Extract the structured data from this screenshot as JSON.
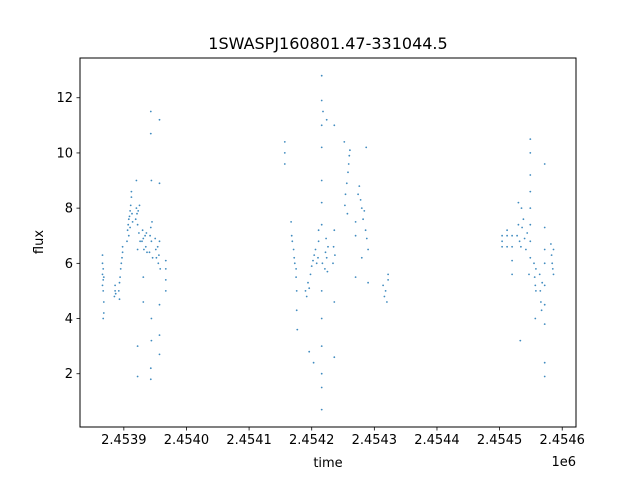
{
  "chart_data": {
    "type": "scatter",
    "title": "1SWASPJ160801.47-331044.5",
    "xlabel": "time",
    "ylabel": "flux",
    "x_offset_label": "1e6",
    "xlim": [
      2453830,
      2454622
    ],
    "ylim": [
      0.07,
      13.44
    ],
    "grid": false,
    "legend": "none",
    "marker_color": "#1f77b4",
    "x_ticks": [
      {
        "value": 2453900,
        "label": "2.4539"
      },
      {
        "value": 2454000,
        "label": "2.4540"
      },
      {
        "value": 2454100,
        "label": "2.4541"
      },
      {
        "value": 2454200,
        "label": "2.4542"
      },
      {
        "value": 2454300,
        "label": "2.4543"
      },
      {
        "value": 2454400,
        "label": "2.4544"
      },
      {
        "value": 2454500,
        "label": "2.4545"
      },
      {
        "value": 2454600,
        "label": "2.4546"
      }
    ],
    "y_ticks": [
      {
        "value": 2,
        "label": "2"
      },
      {
        "value": 4,
        "label": "4"
      },
      {
        "value": 6,
        "label": "6"
      },
      {
        "value": 8,
        "label": "8"
      },
      {
        "value": 10,
        "label": "10"
      },
      {
        "value": 12,
        "label": "12"
      }
    ],
    "points": [
      [
        2453866,
        5.2
      ],
      [
        2453866,
        5.6
      ],
      [
        2453866,
        6.0
      ],
      [
        2453866,
        6.3
      ],
      [
        2453867,
        5.4
      ],
      [
        2453867,
        5.8
      ],
      [
        2453867,
        5.0
      ],
      [
        2453868,
        5.5
      ],
      [
        2453868,
        4.6
      ],
      [
        2453868,
        4.2
      ],
      [
        2453867,
        4.0
      ],
      [
        2453885,
        4.8
      ],
      [
        2453886,
        5.0
      ],
      [
        2453886,
        5.2
      ],
      [
        2453887,
        4.9
      ],
      [
        2453892,
        5.0
      ],
      [
        2453893,
        5.3
      ],
      [
        2453894,
        5.5
      ],
      [
        2453895,
        5.8
      ],
      [
        2453896,
        6.0
      ],
      [
        2453897,
        6.2
      ],
      [
        2453898,
        6.4
      ],
      [
        2453893,
        4.7
      ],
      [
        2453898,
        6.6
      ],
      [
        2453905,
        6.8
      ],
      [
        2453906,
        7.2
      ],
      [
        2453907,
        7.4
      ],
      [
        2453908,
        7.6
      ],
      [
        2453909,
        7.7
      ],
      [
        2453910,
        7.9
      ],
      [
        2453911,
        8.1
      ],
      [
        2453912,
        8.4
      ],
      [
        2453912,
        8.6
      ],
      [
        2453913,
        7.8
      ],
      [
        2453914,
        7.5
      ],
      [
        2453908,
        7.0
      ],
      [
        2453910,
        7.3
      ],
      [
        2453919,
        7.6
      ],
      [
        2453920,
        8.0
      ],
      [
        2453921,
        7.8
      ],
      [
        2453922,
        7.4
      ],
      [
        2453923,
        7.9
      ],
      [
        2453924,
        7.1
      ],
      [
        2453925,
        8.1
      ],
      [
        2453920,
        9.0
      ],
      [
        2453922,
        6.5
      ],
      [
        2453922,
        3.0
      ],
      [
        2453922,
        1.9
      ],
      [
        2453926,
        6.8
      ],
      [
        2453929,
        6.8
      ],
      [
        2453930,
        7.2
      ],
      [
        2453931,
        6.9
      ],
      [
        2453932,
        6.5
      ],
      [
        2453934,
        7.0
      ],
      [
        2453935,
        6.6
      ],
      [
        2453936,
        7.1
      ],
      [
        2453937,
        6.4
      ],
      [
        2453931,
        5.5
      ],
      [
        2453931,
        4.6
      ],
      [
        2453941,
        6.4
      ],
      [
        2453942,
        7.0
      ],
      [
        2453943,
        7.3
      ],
      [
        2453944,
        6.8
      ],
      [
        2453945,
        7.5
      ],
      [
        2453943,
        11.5
      ],
      [
        2453943,
        10.7
      ],
      [
        2453944,
        9.0
      ],
      [
        2453944,
        4.0
      ],
      [
        2453944,
        3.2
      ],
      [
        2453943,
        2.2
      ],
      [
        2453943,
        1.8
      ],
      [
        2453946,
        6.2
      ],
      [
        2453950,
        6.9
      ],
      [
        2453951,
        6.5
      ],
      [
        2453952,
        6.2
      ],
      [
        2453954,
        6.6
      ],
      [
        2453955,
        6.0
      ],
      [
        2453956,
        6.3
      ],
      [
        2453957,
        6.8
      ],
      [
        2453958,
        5.8
      ],
      [
        2453957,
        11.2
      ],
      [
        2453957,
        8.9
      ],
      [
        2453957,
        4.5
      ],
      [
        2453957,
        3.4
      ],
      [
        2453957,
        2.7
      ],
      [
        2453967,
        5.0
      ],
      [
        2453967,
        5.4
      ],
      [
        2453967,
        5.8
      ],
      [
        2453967,
        6.1
      ],
      [
        2454157,
        10.4
      ],
      [
        2454157,
        10.0
      ],
      [
        2454157,
        9.6
      ],
      [
        2454167,
        7.5
      ],
      [
        2454168,
        7.0
      ],
      [
        2454169,
        6.8
      ],
      [
        2454171,
        6.5
      ],
      [
        2454172,
        6.2
      ],
      [
        2454173,
        6.0
      ],
      [
        2454175,
        5.8
      ],
      [
        2454176,
        5.0
      ],
      [
        2454176,
        4.3
      ],
      [
        2454177,
        3.6
      ],
      [
        2454175,
        5.5
      ],
      [
        2454190,
        5.0
      ],
      [
        2454192,
        4.8
      ],
      [
        2454194,
        5.3
      ],
      [
        2454196,
        5.1
      ],
      [
        2454198,
        5.6
      ],
      [
        2454200,
        5.9
      ],
      [
        2454202,
        6.1
      ],
      [
        2454204,
        6.3
      ],
      [
        2454206,
        6.5
      ],
      [
        2454208,
        6.0
      ],
      [
        2454196,
        2.8
      ],
      [
        2454203,
        2.4
      ],
      [
        2454210,
        6.2
      ],
      [
        2454211,
        6.8
      ],
      [
        2454211,
        7.2
      ],
      [
        2454216,
        12.8
      ],
      [
        2454216,
        11.9
      ],
      [
        2454216,
        11.0
      ],
      [
        2454216,
        10.2
      ],
      [
        2454216,
        9.0
      ],
      [
        2454216,
        8.2
      ],
      [
        2454216,
        7.4
      ],
      [
        2454216,
        5.0
      ],
      [
        2454216,
        4.0
      ],
      [
        2454216,
        3.0
      ],
      [
        2454216,
        2.0
      ],
      [
        2454216,
        1.5
      ],
      [
        2454216,
        0.7
      ],
      [
        2454218,
        11.5
      ],
      [
        2454217,
        6.0
      ],
      [
        2454221,
        5.8
      ],
      [
        2454222,
        6.4
      ],
      [
        2454223,
        6.9
      ],
      [
        2454224,
        6.2
      ],
      [
        2454225,
        5.7
      ],
      [
        2454226,
        6.6
      ],
      [
        2454224,
        11.2
      ],
      [
        2454234,
        6.0
      ],
      [
        2454235,
        6.6
      ],
      [
        2454236,
        7.2
      ],
      [
        2454237,
        6.3
      ],
      [
        2454236,
        4.6
      ],
      [
        2454236,
        2.6
      ],
      [
        2454236,
        11.0
      ],
      [
        2454253,
        8.1
      ],
      [
        2454254,
        8.5
      ],
      [
        2454256,
        8.9
      ],
      [
        2454258,
        9.3
      ],
      [
        2454259,
        9.6
      ],
      [
        2454260,
        9.9
      ],
      [
        2454261,
        10.1
      ],
      [
        2454257,
        7.8
      ],
      [
        2454252,
        10.4
      ],
      [
        2454270,
        7.5
      ],
      [
        2454270,
        7.0
      ],
      [
        2454270,
        5.5
      ],
      [
        2454274,
        8.5
      ],
      [
        2454276,
        8.8
      ],
      [
        2454278,
        8.3
      ],
      [
        2454280,
        8.0
      ],
      [
        2454282,
        7.6
      ],
      [
        2454284,
        7.9
      ],
      [
        2454286,
        7.2
      ],
      [
        2454288,
        6.9
      ],
      [
        2454290,
        6.5
      ],
      [
        2454290,
        5.3
      ],
      [
        2454280,
        6.2
      ],
      [
        2454287,
        10.2
      ],
      [
        2454314,
        5.2
      ],
      [
        2454316,
        4.8
      ],
      [
        2454318,
        5.0
      ],
      [
        2454320,
        4.6
      ],
      [
        2454322,
        5.4
      ],
      [
        2454322,
        5.6
      ],
      [
        2454504,
        7.0
      ],
      [
        2454504,
        6.8
      ],
      [
        2454504,
        6.6
      ],
      [
        2454512,
        6.6
      ],
      [
        2454512,
        7.0
      ],
      [
        2454512,
        7.2
      ],
      [
        2454520,
        7.0
      ],
      [
        2454520,
        6.6
      ],
      [
        2454520,
        6.1
      ],
      [
        2454520,
        5.6
      ],
      [
        2454528,
        7.0
      ],
      [
        2454530,
        7.4
      ],
      [
        2454532,
        6.8
      ],
      [
        2454534,
        6.6
      ],
      [
        2454536,
        7.3
      ],
      [
        2454538,
        7.6
      ],
      [
        2454540,
        6.9
      ],
      [
        2454542,
        6.5
      ],
      [
        2454544,
        7.1
      ],
      [
        2454535,
        8.0
      ],
      [
        2454530,
        8.2
      ],
      [
        2454533,
        3.2
      ],
      [
        2454549,
        6.2
      ],
      [
        2454549,
        6.8
      ],
      [
        2454549,
        7.4
      ],
      [
        2454549,
        8.0
      ],
      [
        2454549,
        8.6
      ],
      [
        2454549,
        9.2
      ],
      [
        2454549,
        10.0
      ],
      [
        2454549,
        10.5
      ],
      [
        2454547,
        5.6
      ],
      [
        2454555,
        6.0
      ],
      [
        2454556,
        5.5
      ],
      [
        2454557,
        5.2
      ],
      [
        2454558,
        5.0
      ],
      [
        2454558,
        5.8
      ],
      [
        2454557,
        4.0
      ],
      [
        2454564,
        5.6
      ],
      [
        2454565,
        5.0
      ],
      [
        2454566,
        4.6
      ],
      [
        2454567,
        4.3
      ],
      [
        2454568,
        5.3
      ],
      [
        2454572,
        6.5
      ],
      [
        2454572,
        6.0
      ],
      [
        2454572,
        5.2
      ],
      [
        2454572,
        4.5
      ],
      [
        2454572,
        3.8
      ],
      [
        2454572,
        2.4
      ],
      [
        2454572,
        1.9
      ],
      [
        2454572,
        9.6
      ],
      [
        2454572,
        7.3
      ],
      [
        2454582,
        6.7
      ],
      [
        2454583,
        6.3
      ],
      [
        2454584,
        6.0
      ],
      [
        2454585,
        5.8
      ],
      [
        2454586,
        5.6
      ],
      [
        2454586,
        6.5
      ]
    ]
  }
}
